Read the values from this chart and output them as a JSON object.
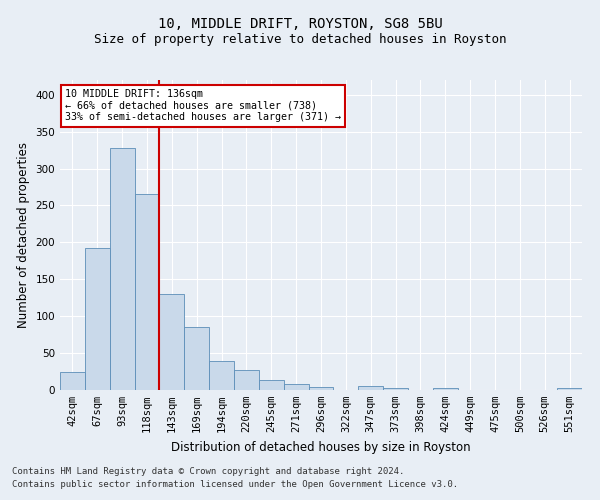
{
  "title_line1": "10, MIDDLE DRIFT, ROYSTON, SG8 5BU",
  "title_line2": "Size of property relative to detached houses in Royston",
  "xlabel": "Distribution of detached houses by size in Royston",
  "ylabel": "Number of detached properties",
  "footnote1": "Contains HM Land Registry data © Crown copyright and database right 2024.",
  "footnote2": "Contains public sector information licensed under the Open Government Licence v3.0.",
  "bin_labels": [
    "42sqm",
    "67sqm",
    "93sqm",
    "118sqm",
    "143sqm",
    "169sqm",
    "194sqm",
    "220sqm",
    "245sqm",
    "271sqm",
    "296sqm",
    "322sqm",
    "347sqm",
    "373sqm",
    "398sqm",
    "424sqm",
    "449sqm",
    "475sqm",
    "500sqm",
    "526sqm",
    "551sqm"
  ],
  "bar_heights": [
    25,
    192,
    328,
    265,
    130,
    85,
    39,
    27,
    14,
    8,
    4,
    0,
    5,
    3,
    0,
    3,
    0,
    0,
    0,
    0,
    3
  ],
  "bar_color": "#c9d9ea",
  "bar_edge_color": "#5b8db8",
  "vline_color": "#cc0000",
  "vline_x_index": 3.5,
  "annotation_text": "10 MIDDLE DRIFT: 136sqm\n← 66% of detached houses are smaller (738)\n33% of semi-detached houses are larger (371) →",
  "annotation_box_color": "#ffffff",
  "annotation_box_edge": "#cc0000",
  "ylim": [
    0,
    420
  ],
  "yticks": [
    0,
    50,
    100,
    150,
    200,
    250,
    300,
    350,
    400
  ],
  "bg_color": "#e8eef5",
  "plot_bg_color": "#e8eef5",
  "grid_color": "#ffffff",
  "title_fontsize": 10,
  "subtitle_fontsize": 9,
  "tick_fontsize": 7.5,
  "label_fontsize": 8.5,
  "footnote_fontsize": 6.5
}
